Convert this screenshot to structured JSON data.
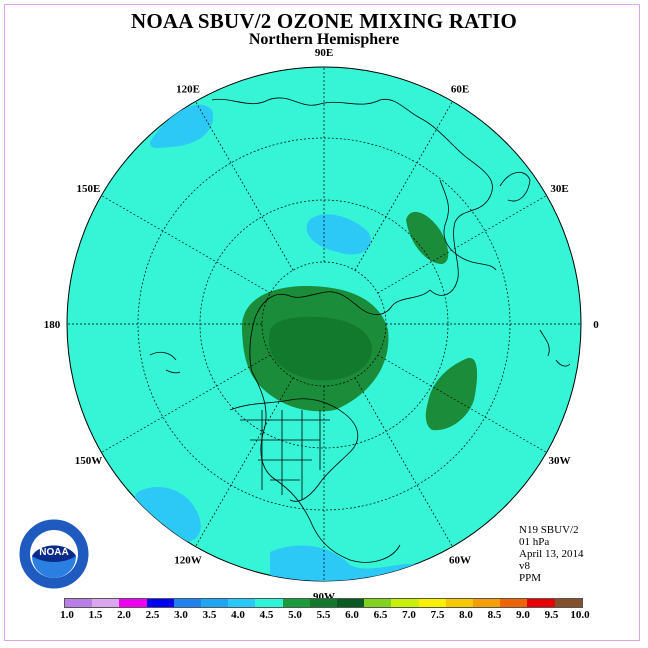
{
  "title": "NOAA SBUV/2 OZONE MIXING RATIO",
  "subtitle": "Northern Hemisphere",
  "longitude_labels": [
    {
      "text": "90E",
      "lon": 90
    },
    {
      "text": "60E",
      "lon": 60
    },
    {
      "text": "30E",
      "lon": 30
    },
    {
      "text": "0",
      "lon": 0
    },
    {
      "text": "30W",
      "lon": -30
    },
    {
      "text": "60W",
      "lon": -60
    },
    {
      "text": "90W",
      "lon": -90
    },
    {
      "text": "120W",
      "lon": -120
    },
    {
      "text": "150W",
      "lon": -150
    },
    {
      "text": "180",
      "lon": 180
    },
    {
      "text": "150E",
      "lon": 150
    },
    {
      "text": "120E",
      "lon": 120
    }
  ],
  "info": {
    "satellite": "N19 SBUV/2",
    "level": "01 hPa",
    "date": "April 13, 2014",
    "version": "v8",
    "units": "PPM"
  },
  "colorbar": {
    "ticks": [
      "1.0",
      "1.5",
      "2.0",
      "2.5",
      "3.0",
      "3.5",
      "4.0",
      "4.5",
      "5.0",
      "5.5",
      "6.0",
      "6.5",
      "7.0",
      "7.5",
      "8.0",
      "8.5",
      "9.0",
      "9.5",
      "10.0"
    ],
    "colors": [
      "#b97fe6",
      "#dca6ef",
      "#f000f0",
      "#0000f0",
      "#1f82f0",
      "#1ea6f5",
      "#28c8fa",
      "#2ef5d8",
      "#1a9c3c",
      "#117a2d",
      "#0a5a22",
      "#82d21e",
      "#c8f00a",
      "#faf000",
      "#f5c800",
      "#f5a000",
      "#f06400",
      "#e60000",
      "#82502d"
    ]
  },
  "field_colors": {
    "background": "#36f5d6",
    "band_4_0": "#2cc8f6",
    "band_5_0": "#1a8c3a",
    "band_5_5": "#117a2d",
    "band_6_0": "#0f6627",
    "ocean_outline": "#000000"
  },
  "logo_text": "NOAA"
}
